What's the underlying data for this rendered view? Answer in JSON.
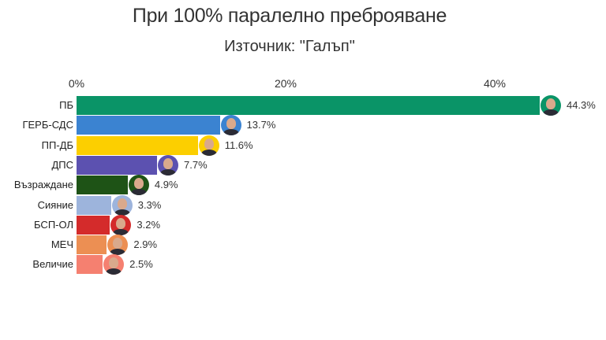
{
  "chart_data": {
    "type": "bar",
    "orientation": "horizontal",
    "title": "При 100% паралелно преброяване",
    "subtitle": "Източник: \"Галъп\"",
    "xlabel": "",
    "ylabel": "",
    "xlim": [
      0,
      47
    ],
    "x_ticks": [
      "0%",
      "20%",
      "40%"
    ],
    "x_axis_position": "top",
    "grid": false,
    "legend": null,
    "categories": [
      "ПБ",
      "ГЕРБ-СДС",
      "ПП-ДБ",
      "ДПС",
      "Възраждане",
      "Сияние",
      "БСП-ОЛ",
      "МЕЧ",
      "Величие"
    ],
    "values": [
      44.3,
      13.7,
      11.6,
      7.7,
      4.9,
      3.3,
      3.2,
      2.9,
      2.5
    ],
    "value_labels": [
      "44.3%",
      "13.7%",
      "11.6%",
      "7.7%",
      "4.9%",
      "3.3%",
      "3.2%",
      "2.9%",
      "2.5%"
    ],
    "colors": [
      "#0a9467",
      "#3b83d1",
      "#fccf00",
      "#5c51b0",
      "#1e5316",
      "#9db4dc",
      "#d42b2b",
      "#ec8f53",
      "#f58070"
    ],
    "annotations": "Circular leader portrait at the end of each bar"
  }
}
